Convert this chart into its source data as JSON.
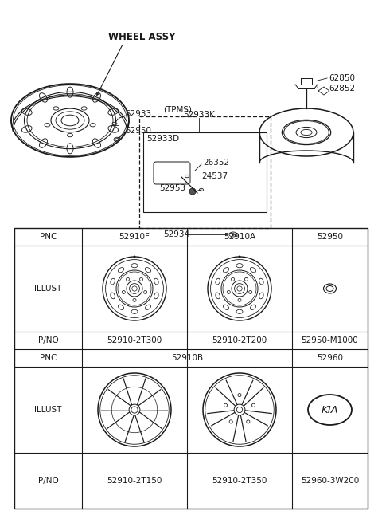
{
  "bg_color": "#ffffff",
  "line_color": "#1a1a1a",
  "wheel_assy_label": "WHEEL ASSY",
  "tpms_label": "(TPMS)",
  "part_52933k": "52933K",
  "part_52933d": "52933D",
  "part_52933": "52933",
  "part_52950": "52950",
  "part_26352": "26352",
  "part_24537": "24537",
  "part_52953": "52953",
  "part_52934": "52934",
  "part_62850": "62850",
  "part_62852": "62852",
  "table_pnc_row1": [
    "PNC",
    "52910F",
    "52910A",
    "52950"
  ],
  "table_pno_row1": [
    "P/NO",
    "52910-2T300",
    "52910-2T200",
    "52950-M1000"
  ],
  "table_pnc_row2_left": "52910B",
  "table_pnc_row2_right": "52960",
  "table_pno_row2": [
    "P/NO",
    "52910-2T150",
    "52910-2T350",
    "52960-3W200"
  ],
  "illust_label": "ILLUST",
  "pnc_label": "PNC"
}
